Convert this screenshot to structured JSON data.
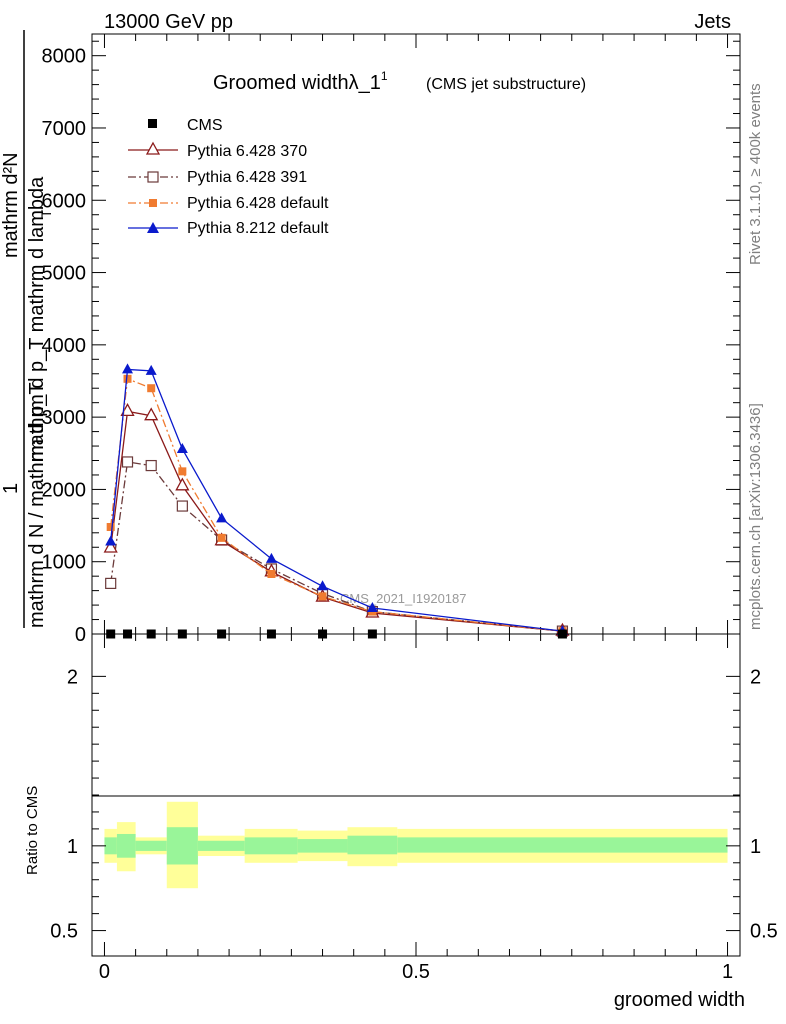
{
  "header": {
    "left": "13000 GeV pp",
    "right": "Jets"
  },
  "side_labels": {
    "rivet": "Rivet 3.1.10, ≥ 400k events",
    "mcplots": "mcplots.cern.ch [arXiv:1306.3436]"
  },
  "colors": {
    "cms": "#000000",
    "p370": "#8b1a1a",
    "p391": "#6b3a3a",
    "p6def": "#f07b30",
    "p8def": "#0a1acc",
    "band_inner": "#99f599",
    "band_outer": "#ffff99"
  },
  "chart_data": [
    {
      "type": "line",
      "title": "Groomed widthλ_1",
      "title_sup": "1",
      "subtitle": "(CMS jet substructure)",
      "watermark": "CMS_2021_I1920187",
      "ylabel_top": "mathrm d²N",
      "ylabel_top2": "mathrm d p_T mathrm d lambda",
      "ylabel_bottom": "mathrm d N / mathrm d p_T",
      "ylabel_prefix": "1",
      "ylabel_sub_T": "T",
      "ylim": [
        0,
        8300
      ],
      "xlim": [
        -0.02,
        1.02
      ],
      "yticks": [
        0,
        1000,
        2000,
        3000,
        4000,
        5000,
        6000,
        7000,
        8000
      ],
      "ytick_labels": [
        "0",
        "1000",
        "2000",
        "3000",
        "4000",
        "5000",
        "6000",
        "7000",
        "8000"
      ],
      "legend": [
        "CMS",
        "Pythia 6.428 370",
        "Pythia 6.428 391",
        "Pythia 6.428 default",
        "Pythia 8.212 default"
      ],
      "x": [
        0.01,
        0.037,
        0.075,
        0.125,
        0.188,
        0.268,
        0.35,
        0.43,
        0.735
      ],
      "series": [
        {
          "name": "CMS",
          "values": [
            0,
            0,
            0,
            0,
            0,
            0,
            0,
            0,
            0
          ]
        },
        {
          "name": "Pythia 6.428 370",
          "values": [
            1190,
            3080,
            3020,
            2050,
            1290,
            860,
            510,
            290,
            40
          ]
        },
        {
          "name": "Pythia 6.428 391",
          "values": [
            700,
            2380,
            2330,
            1770,
            1300,
            900,
            560,
            310,
            40
          ]
        },
        {
          "name": "Pythia 6.428 default",
          "values": [
            1480,
            3530,
            3400,
            2250,
            1330,
            830,
            520,
            310,
            40
          ]
        },
        {
          "name": "Pythia 8.212 default",
          "values": [
            1280,
            3660,
            3640,
            2560,
            1600,
            1040,
            660,
            360,
            40
          ]
        }
      ]
    },
    {
      "type": "area",
      "ylabel": "Ratio to CMS",
      "xlabel": "groomed width",
      "ylim": [
        0.35,
        2.25
      ],
      "xlim": [
        -0.02,
        1.02
      ],
      "yticks": [
        0.5,
        1,
        2
      ],
      "ytick_labels": [
        "0.5",
        "1",
        "2"
      ],
      "xticks": [
        0,
        0.5,
        1
      ],
      "xtick_labels": [
        "0",
        "0.5",
        "1"
      ],
      "bin_edges": [
        0,
        0.02,
        0.05,
        0.1,
        0.15,
        0.225,
        0.31,
        0.39,
        0.47,
        1.0
      ],
      "inner_band_low": [
        0.95,
        0.93,
        0.97,
        0.89,
        0.97,
        0.95,
        0.96,
        0.95,
        0.96
      ],
      "inner_band_high": [
        1.05,
        1.07,
        1.03,
        1.11,
        1.03,
        1.05,
        1.04,
        1.06,
        1.05
      ],
      "outer_band_low": [
        0.9,
        0.85,
        0.95,
        0.75,
        0.94,
        0.9,
        0.91,
        0.88,
        0.9
      ],
      "outer_band_high": [
        1.1,
        1.14,
        1.05,
        1.26,
        1.06,
        1.1,
        1.09,
        1.11,
        1.1
      ]
    }
  ]
}
